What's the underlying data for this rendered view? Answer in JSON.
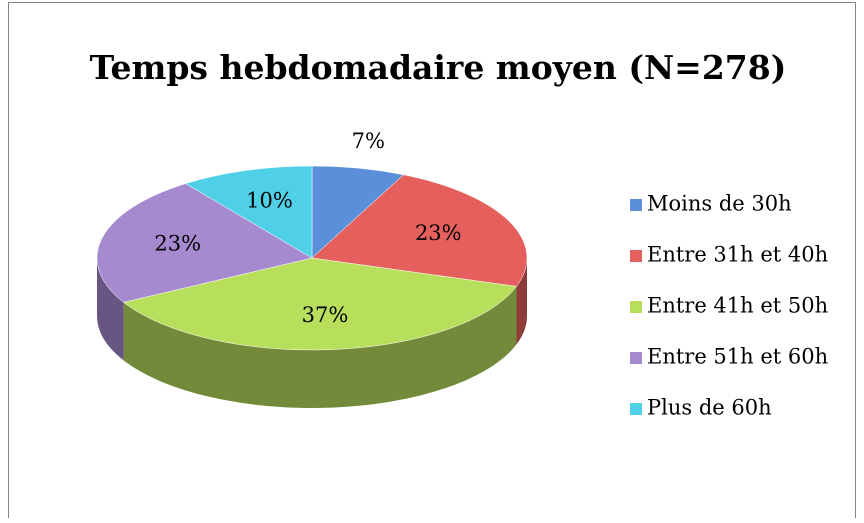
{
  "chart_data": {
    "type": "pie",
    "title": "Temps hebdomadaire moyen (N=278)",
    "categories": [
      "Moins de 30h",
      "Entre 31h et 40h",
      "Entre 41h et 50h",
      "Entre 51h et 60h",
      "Plus de 60h"
    ],
    "values": [
      7,
      23,
      37,
      23,
      10
    ],
    "value_labels": [
      "7%",
      "23%",
      "37%",
      "23%",
      "10%"
    ],
    "colors": [
      "#5b8fd9",
      "#e5605c",
      "#b8df5c",
      "#a58ad0",
      "#4fd0e6"
    ],
    "legend": "right"
  }
}
